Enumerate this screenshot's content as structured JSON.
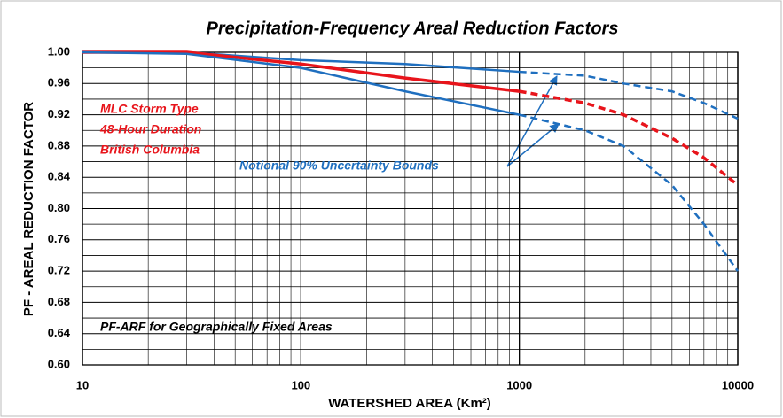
{
  "chart_data": {
    "type": "line",
    "title": "Precipitation-Frequency  Areal Reduction Factors",
    "x_label": "WATERSHED AREA (Km²)",
    "y_label": "PF - AREAL REDUCTION FACTOR",
    "x_scale": "log",
    "xlim": [
      10,
      10000
    ],
    "xticks": [
      10,
      100,
      1000,
      10000
    ],
    "ylim": [
      0.6,
      1.0
    ],
    "yticks": [
      {
        "value": 0.6,
        "label": "0.60"
      },
      {
        "value": 0.64,
        "label": "0.64"
      },
      {
        "value": 0.68,
        "label": "0.68"
      },
      {
        "value": 0.72,
        "label": "0.72"
      },
      {
        "value": 0.76,
        "label": "0.76"
      },
      {
        "value": 0.8,
        "label": "0.80"
      },
      {
        "value": 0.84,
        "label": "0.84"
      },
      {
        "value": 0.88,
        "label": "0.88"
      },
      {
        "value": 0.92,
        "label": "0.92"
      },
      {
        "value": 0.96,
        "label": "0.96"
      },
      {
        "value": 1.0,
        "label": "1.00"
      }
    ],
    "grid": true,
    "x": [
      10,
      30,
      100,
      300,
      1000,
      2000,
      3000,
      5000,
      7000,
      10000
    ],
    "series": [
      {
        "color": "#1f6fbf",
        "style": "solid",
        "values": [
          1.0,
          1.0,
          0.99,
          0.985,
          0.975,
          null,
          null,
          null,
          null,
          null
        ]
      },
      {
        "color": "#1f6fbf",
        "style": "dashed",
        "values": [
          null,
          null,
          null,
          null,
          0.975,
          0.97,
          0.96,
          0.95,
          0.935,
          0.915
        ]
      },
      {
        "color": "#e8141b",
        "style": "solid",
        "values": [
          1.0,
          1.0,
          0.985,
          0.967,
          0.95,
          null,
          null,
          null,
          null,
          null
        ]
      },
      {
        "color": "#e8141b",
        "style": "dashed",
        "values": [
          null,
          null,
          null,
          null,
          0.95,
          0.935,
          0.92,
          0.89,
          0.865,
          0.83
        ]
      },
      {
        "color": "#1f6fbf",
        "style": "solid",
        "values": [
          1.0,
          0.998,
          0.98,
          0.95,
          0.92,
          null,
          null,
          null,
          null,
          null
        ]
      },
      {
        "color": "#1f6fbf",
        "style": "dashed",
        "values": [
          null,
          null,
          null,
          null,
          0.92,
          0.9,
          0.88,
          0.83,
          0.78,
          0.72
        ]
      }
    ],
    "annotations": [
      {
        "text": "MLC Storm Type",
        "color": "#e8141b"
      },
      {
        "text": "48-Hour Duration",
        "color": "#e8141b"
      },
      {
        "text": "British Columbia",
        "color": "#e8141b"
      },
      {
        "text": "Notional  90% Uncertainty Bounds",
        "color": "#1f6fbf"
      },
      {
        "text": "PF-ARF for Geographically  Fixed Areas",
        "color": "#000000"
      }
    ]
  }
}
